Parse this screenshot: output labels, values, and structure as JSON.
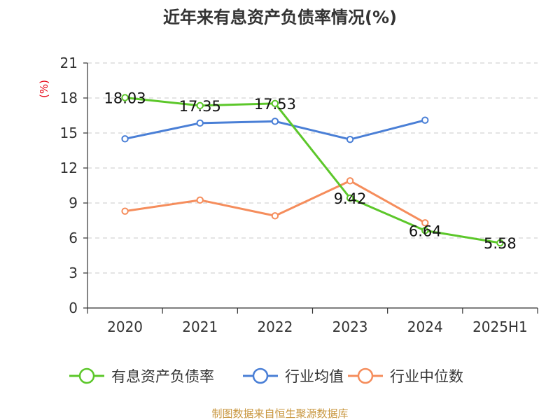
{
  "chart_data": {
    "type": "line",
    "title": "近年来有息资产负债率情况(%)",
    "unit": "(%)",
    "categories": [
      "2020",
      "2021",
      "2022",
      "2023",
      "2024",
      "2025H1"
    ],
    "ylim": [
      0,
      21
    ],
    "yticks": [
      "0",
      "3",
      "6",
      "9",
      "12",
      "15",
      "18",
      "21"
    ],
    "grid": true,
    "legend_position": "bottom",
    "series": [
      {
        "name": "有息资产负债率",
        "color": "#5cc72a",
        "values": [
          18.03,
          17.35,
          17.53,
          9.42,
          6.64,
          5.58
        ],
        "labels": [
          "18.03",
          "17.35",
          "17.53",
          "9.42",
          "6.64",
          "5.58"
        ]
      },
      {
        "name": "行业均值",
        "color": "#4a7fd6",
        "values": [
          14.5,
          15.85,
          16.0,
          14.45,
          16.1,
          null
        ]
      },
      {
        "name": "行业中位数",
        "color": "#f58d5c",
        "values": [
          8.3,
          9.25,
          7.9,
          10.9,
          7.3,
          null
        ]
      }
    ],
    "source": "制图数据来自恒生聚源数据库"
  }
}
